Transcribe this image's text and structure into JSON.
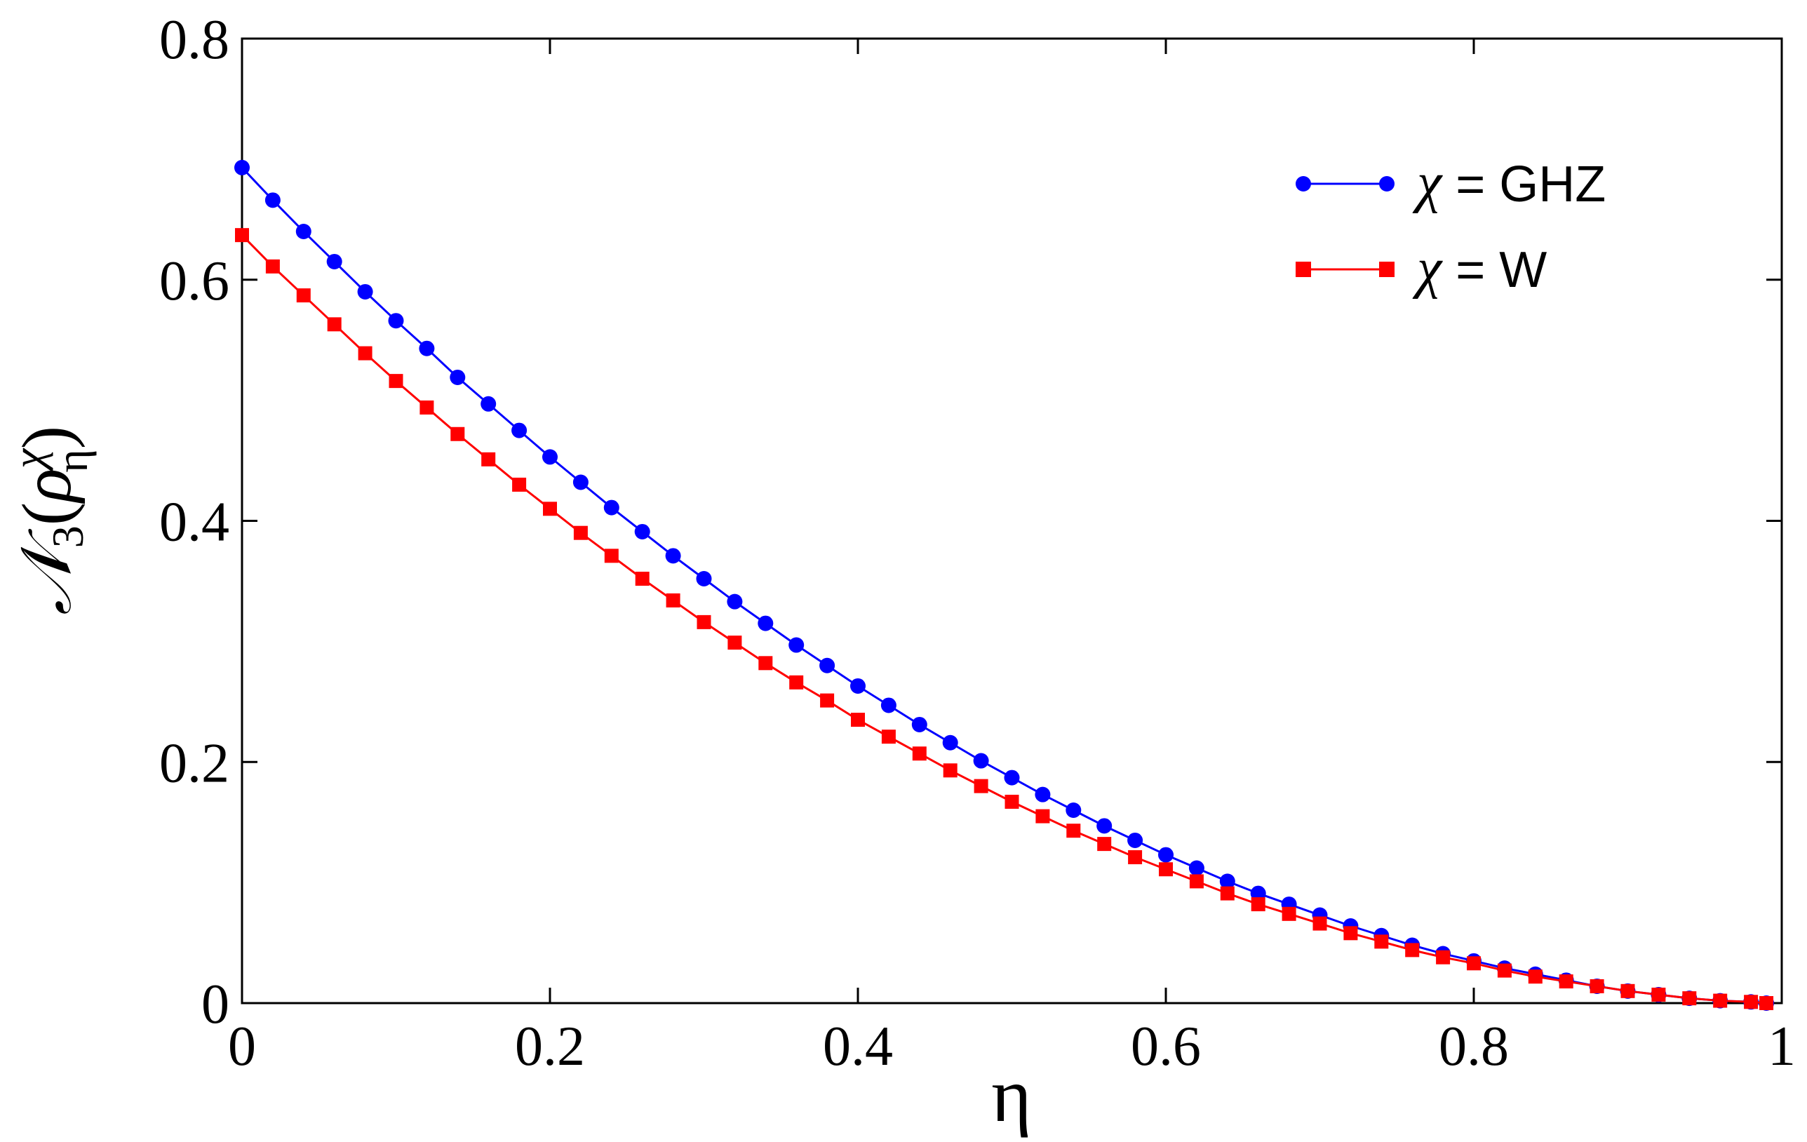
{
  "chart_data": {
    "type": "scatter",
    "title": "",
    "xlabel": "η",
    "ylabel": {
      "main": "𝒩",
      "sub": "3",
      "open": "(",
      "rho": "ρ",
      "sup": "χ",
      "rho_sub": "η",
      "close": ")"
    },
    "xlim": [
      0,
      1
    ],
    "ylim": [
      0,
      0.8
    ],
    "x_ticks": [
      0,
      0.2,
      0.4,
      0.6,
      0.8,
      1
    ],
    "x_tick_labels": [
      "0",
      "0.2",
      "0.4",
      "0.6",
      "0.8",
      "1"
    ],
    "y_ticks": [
      0,
      0.2,
      0.4,
      0.6,
      0.8
    ],
    "y_tick_labels": [
      "0",
      "0.2",
      "0.4",
      "0.6",
      "0.8"
    ],
    "grid": false,
    "legend_position": "top-right",
    "x": [
      0,
      0.02,
      0.04,
      0.06,
      0.08,
      0.1,
      0.12,
      0.14,
      0.16,
      0.18,
      0.2,
      0.22,
      0.24,
      0.26,
      0.28,
      0.3,
      0.32,
      0.34,
      0.36,
      0.38,
      0.4,
      0.42,
      0.44,
      0.46,
      0.48,
      0.5,
      0.52,
      0.54,
      0.56,
      0.58,
      0.6,
      0.62,
      0.64,
      0.66,
      0.68,
      0.7,
      0.72,
      0.74,
      0.76,
      0.78,
      0.8,
      0.82,
      0.84,
      0.86,
      0.88,
      0.9,
      0.92,
      0.94,
      0.96,
      0.98,
      0.99
    ],
    "series": [
      {
        "name_prefix": "χ",
        "name_suffix": " = GHZ",
        "color": "#0000ff",
        "marker": "circle",
        "values": [
          0.693,
          0.666,
          0.64,
          0.615,
          0.59,
          0.566,
          0.543,
          0.519,
          0.497,
          0.475,
          0.453,
          0.432,
          0.411,
          0.391,
          0.371,
          0.352,
          0.333,
          0.315,
          0.297,
          0.28,
          0.263,
          0.247,
          0.231,
          0.216,
          0.201,
          0.187,
          0.173,
          0.16,
          0.147,
          0.135,
          0.123,
          0.112,
          0.101,
          0.091,
          0.082,
          0.073,
          0.064,
          0.056,
          0.048,
          0.041,
          0.035,
          0.029,
          0.024,
          0.019,
          0.014,
          0.01,
          0.007,
          0.004,
          0.002,
          0.001,
          0.0
        ]
      },
      {
        "name_prefix": "χ",
        "name_suffix": " = W",
        "color": "#ff0000",
        "marker": "square",
        "values": [
          0.637,
          0.611,
          0.587,
          0.563,
          0.539,
          0.516,
          0.494,
          0.472,
          0.451,
          0.43,
          0.41,
          0.39,
          0.371,
          0.352,
          0.334,
          0.316,
          0.299,
          0.282,
          0.266,
          0.251,
          0.235,
          0.221,
          0.207,
          0.193,
          0.18,
          0.167,
          0.155,
          0.143,
          0.132,
          0.121,
          0.111,
          0.101,
          0.091,
          0.082,
          0.074,
          0.066,
          0.058,
          0.051,
          0.044,
          0.038,
          0.033,
          0.027,
          0.022,
          0.018,
          0.014,
          0.01,
          0.007,
          0.004,
          0.002,
          0.001,
          0.0
        ]
      }
    ]
  }
}
